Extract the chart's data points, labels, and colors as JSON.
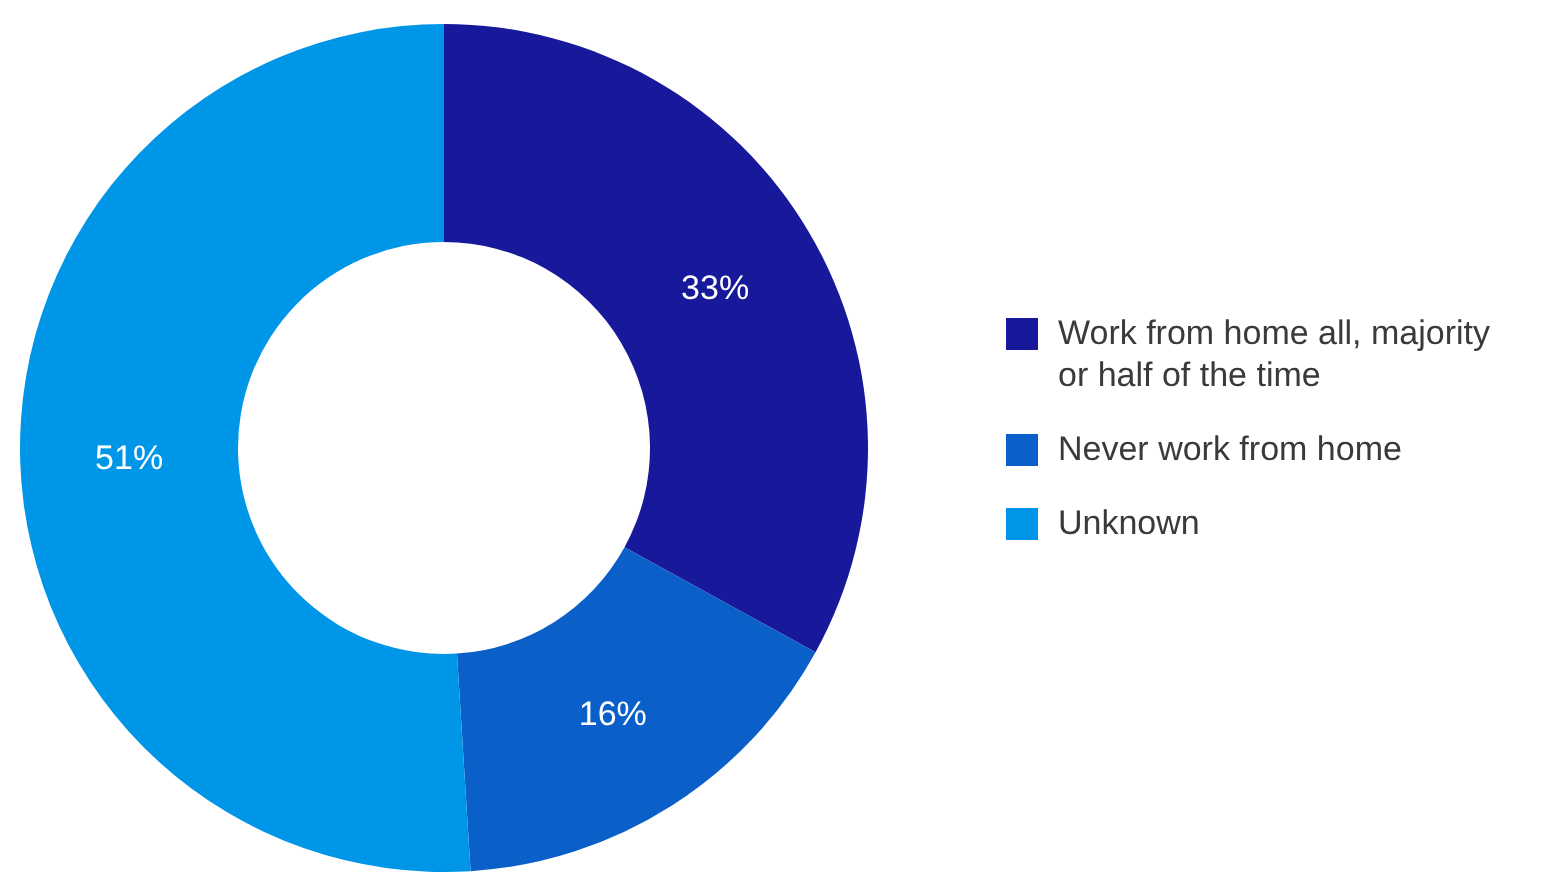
{
  "chart_data": {
    "type": "donut",
    "categories": [
      "Work from home all, majority or half of the time",
      "Never work from home",
      "Unknown"
    ],
    "values": [
      33,
      16,
      51
    ],
    "colors": [
      "#18189a",
      "#0a5fc8",
      "#0096e8"
    ],
    "value_labels": [
      "33%",
      "16%",
      "51%"
    ],
    "legend": "right"
  }
}
